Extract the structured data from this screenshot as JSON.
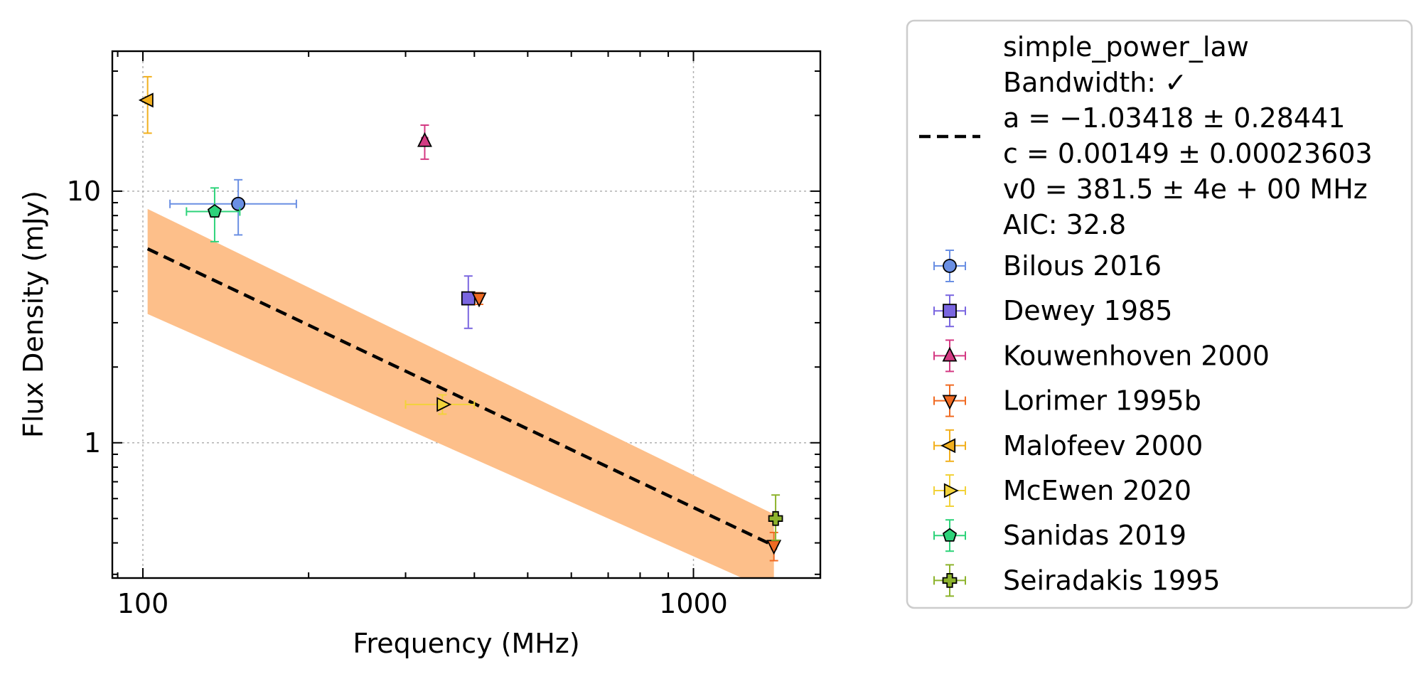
{
  "chart_data": {
    "type": "scatter",
    "title": "",
    "xlabel": "Frequency (MHz)",
    "ylabel": "Flux Density (mJy)",
    "xscale": "log",
    "yscale": "log",
    "xlim": [
      88,
      1700
    ],
    "ylim": [
      0.29,
      36
    ],
    "x_ticks": [
      {
        "value": 100,
        "label": "100"
      },
      {
        "value": 1000,
        "label": "1000"
      }
    ],
    "y_ticks": [
      {
        "value": 1,
        "label": "1"
      },
      {
        "value": 10,
        "label": "10"
      }
    ],
    "grid": true,
    "legend_position": "outside-right",
    "fit": {
      "name": "simple_power_law",
      "legend_lines": [
        "simple_power_law",
        "Bandwidth: ✓",
        "a = −1.03418 ± 0.28441",
        "c = 0.00149 ± 0.00023603",
        "v0 = 381.5 ± 4e + 00 MHz",
        "AIC: 32.8"
      ],
      "a": -1.03418,
      "c": 0.00149,
      "v0": 381.5,
      "line_x": [
        102,
        1400
      ],
      "line_y": [
        5.9,
        0.39
      ],
      "band_upper_y": [
        8.5,
        0.52
      ],
      "band_lower_y": [
        3.25,
        0.255
      ],
      "line_color": "#000000",
      "band_color": "#fdbf8a"
    },
    "series": [
      {
        "name": "Bilous 2016",
        "marker": "circle",
        "color": "#6a8fe3",
        "points": [
          {
            "x": 149,
            "xerr": [
              112,
              190
            ],
            "y": 8.9,
            "yerr": [
              6.7,
              11.1
            ]
          }
        ]
      },
      {
        "name": "Dewey 1985",
        "marker": "square",
        "color": "#7a66e0",
        "points": [
          {
            "x": 390,
            "xerr": [
              382,
              398
            ],
            "y": 3.75,
            "yerr": [
              2.85,
              4.6
            ]
          }
        ]
      },
      {
        "name": "Kouwenhoven 2000",
        "marker": "triangle-up",
        "color": "#d43a83",
        "points": [
          {
            "x": 325,
            "xerr": [
              321,
              329
            ],
            "y": 15.8,
            "yerr": [
              13.4,
              18.3
            ]
          }
        ]
      },
      {
        "name": "Lorimer 1995b",
        "marker": "triangle-down",
        "color": "#f06a22",
        "points": [
          {
            "x": 408,
            "xerr": [
              404,
              412
            ],
            "y": 3.75,
            "yerr": [
              3.55,
              3.95
            ]
          },
          {
            "x": 1400,
            "xerr": [
              1385,
              1415
            ],
            "y": 0.39,
            "yerr": [
              0.34,
              0.44
            ]
          }
        ]
      },
      {
        "name": "Malofeev 2000",
        "marker": "triangle-left",
        "color": "#f2b01e",
        "points": [
          {
            "x": 102,
            "xerr": [
              101,
              103
            ],
            "y": 23,
            "yerr": [
              17,
              28.5
            ]
          }
        ]
      },
      {
        "name": "McEwen 2020",
        "marker": "triangle-right",
        "color": "#f2d23a",
        "points": [
          {
            "x": 350,
            "xerr": [
              300,
              400
            ],
            "y": 1.42,
            "yerr": [
              1.3,
              1.55
            ]
          }
        ]
      },
      {
        "name": "Sanidas 2019",
        "marker": "pentagon",
        "color": "#2ed37a",
        "points": [
          {
            "x": 135,
            "xerr": [
              120,
              150
            ],
            "y": 8.3,
            "yerr": [
              6.3,
              10.3
            ]
          }
        ]
      },
      {
        "name": "Seiradakis 1995",
        "marker": "plus",
        "color": "#8db32c",
        "points": [
          {
            "x": 1410,
            "xerr": [
              1400,
              1420
            ],
            "y": 0.5,
            "yerr": [
              0.41,
              0.62
            ]
          }
        ]
      }
    ]
  }
}
